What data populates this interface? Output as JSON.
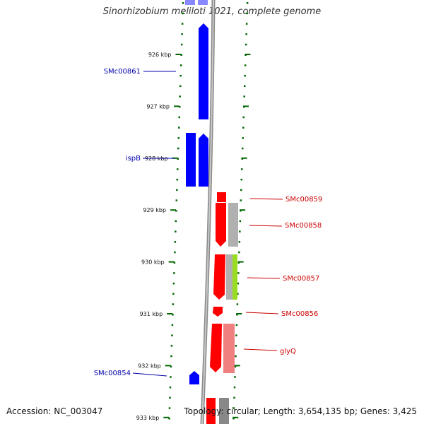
{
  "title": "Sinorhizobium meliloti 1021, complete genome",
  "footer": {
    "accession": "Accession: NC_003047",
    "summary": "Topology: circular; Length: 3,654,135 bp; Genes: 3,425"
  },
  "axis": {
    "ticks": [
      {
        "label": "926 kbp",
        "kbp": 926
      },
      {
        "label": "927 kbp",
        "kbp": 927
      },
      {
        "label": "928 kbp",
        "kbp": 928
      },
      {
        "label": "929 kbp",
        "kbp": 929
      },
      {
        "label": "930 kbp",
        "kbp": 930
      },
      {
        "label": "931 kbp",
        "kbp": 931
      },
      {
        "label": "932 kbp",
        "kbp": 932
      },
      {
        "label": "933 kbp",
        "kbp": 933
      }
    ]
  },
  "colors": {
    "forward": "#0000ff",
    "reverse": "#ff0000",
    "reverse_light": "#f08080",
    "gray": "#b0b0b0",
    "lime": "#99dd22",
    "backbone": "#888888",
    "tick": "#006600"
  },
  "labels": {
    "forward": [
      {
        "name": "SMc00861"
      },
      {
        "name": "ispB"
      },
      {
        "name": "SMc00854"
      }
    ],
    "reverse": [
      {
        "name": "SMc00859"
      },
      {
        "name": "SMc00858"
      },
      {
        "name": "SMc00857"
      },
      {
        "name": "SMc00856"
      },
      {
        "name": "glyQ"
      }
    ]
  }
}
